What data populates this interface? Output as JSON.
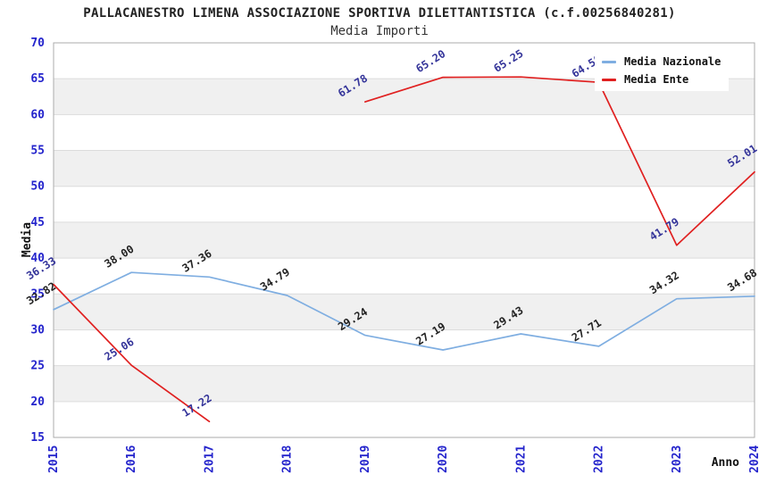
{
  "chart_data": {
    "type": "line",
    "title": "PALLACANESTRO LIMENA ASSOCIAZIONE SPORTIVA DILETTANTISTICA (c.f.00256840281)",
    "subtitle": "Media Importi",
    "xlabel": "Anno",
    "ylabel": "Media",
    "categories": [
      "2015",
      "2016",
      "2017",
      "2018",
      "2019",
      "2020",
      "2021",
      "2022",
      "2023",
      "2024"
    ],
    "ylim": [
      15,
      70
    ],
    "ytick_step": 5,
    "yticks": [
      15,
      20,
      25,
      30,
      35,
      40,
      45,
      50,
      55,
      60,
      65,
      70
    ],
    "grid": "horizontal-on",
    "band_fill": "alternating-gray-every-10",
    "legend_position": "top-right-overlapping-plot",
    "label_rotation_deg": -32,
    "series": [
      {
        "name": "Media Nazionale",
        "color": "#7faee1",
        "label_color": "#222222",
        "values": [
          32.82,
          38.0,
          37.36,
          34.79,
          29.24,
          27.19,
          29.43,
          27.71,
          34.32,
          34.68
        ]
      },
      {
        "name": "Media Ente",
        "color": "#e02020",
        "label_color": "#333399",
        "values": [
          36.33,
          25.06,
          17.22,
          null,
          61.78,
          65.2,
          65.25,
          64.5,
          41.79,
          52.01
        ],
        "label_note_2022": "partially hidden behind legend (shows 64. )"
      }
    ],
    "colors": {
      "axis_tick_text": "#2424cc",
      "grid_line": "#dcdcdc",
      "band_gray": "#f0f0f0",
      "plot_border": "#ababab",
      "title_text": "#222222"
    }
  }
}
